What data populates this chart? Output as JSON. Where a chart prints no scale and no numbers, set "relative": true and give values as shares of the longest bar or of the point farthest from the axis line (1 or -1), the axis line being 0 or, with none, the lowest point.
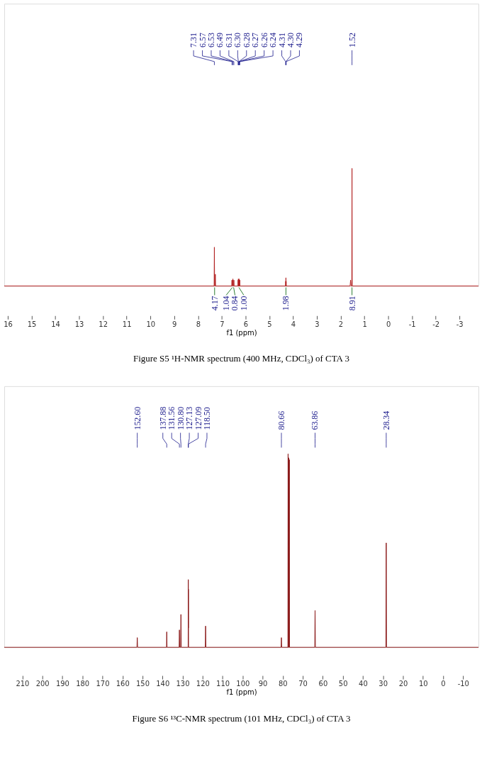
{
  "chart_data": [
    {
      "type": "line",
      "relative": true,
      "title": "Figure S5 ¹H-NMR spectrum (400 MHz, CDCl₃) of CTA 3",
      "xlabel": "f1 (ppm)",
      "xlim": [
        16.15,
        -3.8
      ],
      "xticks": [
        16,
        15,
        14,
        13,
        12,
        11,
        10,
        9,
        8,
        7,
        6,
        5,
        4,
        3,
        2,
        1,
        0,
        -1,
        -2,
        -3
      ],
      "grid": false,
      "series": [
        {
          "color": "#b22222",
          "x": [
            16.15,
            7.32,
            7.31,
            7.3,
            7.28,
            7.27,
            7.26,
            6.58,
            6.57,
            6.56,
            6.54,
            6.53,
            6.52,
            6.5,
            6.49,
            6.48,
            6.315,
            6.31,
            6.305,
            6.3,
            6.295,
            6.285,
            6.28,
            6.275,
            6.27,
            6.265,
            6.26,
            6.255,
            6.245,
            6.24,
            6.235,
            4.315,
            4.31,
            4.305,
            4.3,
            4.295,
            4.29,
            4.285,
            1.6,
            1.58,
            1.56,
            1.53,
            1.52,
            1.51,
            -3.8
          ],
          "values": [
            0,
            0,
            0.33,
            0,
            0,
            0.1,
            0,
            0,
            0.05,
            0,
            0,
            0.06,
            0,
            0,
            0.05,
            0,
            0,
            0.05,
            0,
            0.06,
            0,
            0,
            0.05,
            0,
            0.06,
            0,
            0.05,
            0,
            0,
            0.05,
            0,
            0,
            0.04,
            0,
            0.07,
            0,
            0.04,
            0,
            0,
            0.05,
            0,
            0,
            1.0,
            0,
            0
          ]
        }
      ],
      "annotations": [
        {
          "text": "7.31",
          "x": 7.31
        },
        {
          "text": "6.57",
          "x": 6.57
        },
        {
          "text": "6.53",
          "x": 6.53
        },
        {
          "text": "6.49",
          "x": 6.49
        },
        {
          "text": "6.31",
          "x": 6.31
        },
        {
          "text": "6.30",
          "x": 6.3
        },
        {
          "text": "6.28",
          "x": 6.28
        },
        {
          "text": "6.27",
          "x": 6.27
        },
        {
          "text": "6.26",
          "x": 6.26
        },
        {
          "text": "6.24",
          "x": 6.24
        },
        {
          "text": "4.31",
          "x": 4.31
        },
        {
          "text": "4.30",
          "x": 4.3
        },
        {
          "text": "4.29",
          "x": 4.29
        },
        {
          "text": "1.52",
          "x": 1.52
        },
        {
          "text": "4.17",
          "x": 7.3,
          "y": 0
        },
        {
          "text": "1.04",
          "x": 6.55,
          "y": 0
        },
        {
          "text": "0.84",
          "x": 6.5,
          "y": 0
        },
        {
          "text": "1.00",
          "x": 6.28,
          "y": 0
        },
        {
          "text": "1.98",
          "x": 4.3,
          "y": 0
        },
        {
          "text": "8.91",
          "x": 1.52,
          "y": 0
        }
      ]
    },
    {
      "type": "line",
      "relative": true,
      "title": "Figure S6 ¹³C-NMR spectrum (101 MHz, CDCl₃) of CTA 3",
      "xlabel": "f1 (ppm)",
      "xlim": [
        219,
        -17.7
      ],
      "xticks": [
        210,
        200,
        190,
        180,
        170,
        160,
        150,
        140,
        130,
        120,
        110,
        100,
        90,
        80,
        70,
        60,
        50,
        40,
        30,
        20,
        10,
        0,
        -10
      ],
      "grid": false,
      "series": [
        {
          "color": "#8b1a1a",
          "x": [
            219,
            152.75,
            152.6,
            152.45,
            138.0,
            137.88,
            137.75,
            131.7,
            131.56,
            131.4,
            130.95,
            130.8,
            130.65,
            127.2,
            127.13,
            127.11,
            127.09,
            127.0,
            118.65,
            118.5,
            118.35,
            80.8,
            80.66,
            80.5,
            77.4,
            77.32,
            77.2,
            77.1,
            77.0,
            76.9,
            76.8,
            76.68,
            76.6,
            64.0,
            63.86,
            63.7,
            28.5,
            28.34,
            28.2,
            -17.7
          ],
          "values": [
            0,
            0,
            0.05,
            0,
            0,
            0.08,
            0,
            0,
            0.09,
            0,
            0,
            0.17,
            0,
            0,
            0.35,
            0.1,
            0.3,
            0,
            0,
            0.11,
            0,
            0,
            0.05,
            0,
            0,
            1.0,
            0,
            0,
            0.98,
            0,
            0,
            0.97,
            0,
            0,
            0.19,
            0,
            0,
            0.54,
            0,
            0
          ]
        }
      ],
      "annotations": [
        {
          "text": "152.60",
          "x": 152.6
        },
        {
          "text": "137.88",
          "x": 137.88
        },
        {
          "text": "131.56",
          "x": 131.56
        },
        {
          "text": "130.80",
          "x": 130.8
        },
        {
          "text": "127.13",
          "x": 127.13
        },
        {
          "text": "127.09",
          "x": 127.09
        },
        {
          "text": "118.50",
          "x": 118.5
        },
        {
          "text": "80.66",
          "x": 80.66
        },
        {
          "text": "63.86",
          "x": 63.86
        },
        {
          "text": "28.34",
          "x": 28.34
        }
      ]
    }
  ]
}
